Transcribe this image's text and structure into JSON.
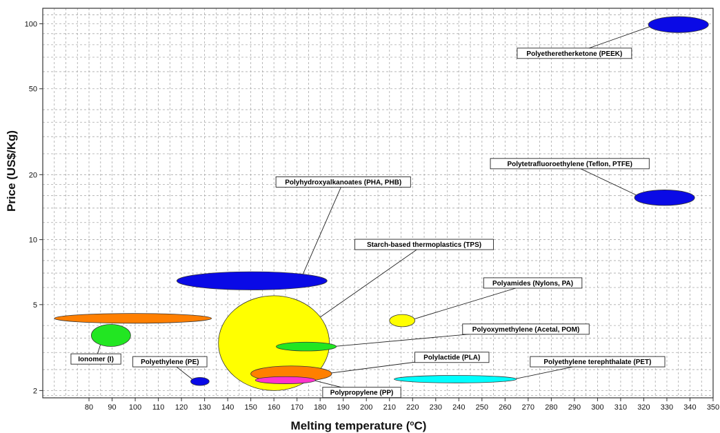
{
  "chart_data": {
    "type": "scatter",
    "subtype": "bubble-ellipse",
    "xlabel": "Melting temperature (",
    "xlabel_sup": "o",
    "xlabel_suffix": "C)",
    "ylabel": "Price (US$/Kg)",
    "xlim": [
      60,
      350
    ],
    "ylim": [
      1.85,
      118
    ],
    "y_scale": "log",
    "grid": true,
    "x_ticks": [
      80,
      90,
      100,
      110,
      120,
      130,
      140,
      150,
      160,
      170,
      180,
      190,
      200,
      210,
      220,
      230,
      240,
      250,
      260,
      270,
      280,
      290,
      300,
      310,
      320,
      330,
      340,
      350
    ],
    "y_ticks": [
      2,
      5,
      10,
      20,
      50,
      100
    ],
    "series": [
      {
        "label": "Polyetheretherketone (PEEK)",
        "x_min": 322,
        "x_max": 348,
        "y_min": 91,
        "y_max": 108,
        "color": "#0a0ae6",
        "label_x": 290,
        "label_y": 73
      },
      {
        "label": "Polytetrafluoroethylene (Teflon, PTFE)",
        "x_min": 316,
        "x_max": 342,
        "y_min": 14.4,
        "y_max": 17.0,
        "color": "#0a0ae6",
        "label_x": 288,
        "label_y": 22.5
      },
      {
        "label": "Polyhydroxyalkanoates (PHA, PHB)",
        "x_min": 118,
        "x_max": 183,
        "y_min": 5.85,
        "y_max": 7.1,
        "color": "#0a0ae6",
        "label_x": 190,
        "label_y": 18.5
      },
      {
        "label": "Starch-based thermoplastics (TPS)",
        "x_min": 136,
        "x_max": 184,
        "y_min": 2.0,
        "y_max": 5.5,
        "color": "#ffff00",
        "label_x": 225,
        "label_y": 9.5
      },
      {
        "label": "Polyamides (Nylons, PA)",
        "x_min": 210,
        "x_max": 221,
        "y_min": 3.95,
        "y_max": 4.5,
        "color": "#ffff00",
        "label_x": 272,
        "label_y": 6.3
      },
      {
        "label": "Polyoxymethylene (Acetal, POM)",
        "x_min": 161,
        "x_max": 187,
        "y_min": 3.05,
        "y_max": 3.35,
        "color": "#22e622",
        "label_x": 269,
        "label_y": 3.85
      },
      {
        "label": "Polylactide (PLA)",
        "x_min": 150,
        "x_max": 185,
        "y_min": 2.2,
        "y_max": 2.6,
        "color": "#ff7f00",
        "label_x": 237,
        "label_y": 2.85
      },
      {
        "label": "Polypropylene (PP)",
        "x_min": 152,
        "x_max": 178,
        "y_min": 2.15,
        "y_max": 2.32,
        "color": "#ff33cc",
        "label_x": 198,
        "label_y": 1.96
      },
      {
        "label": "Polyethylene terephthalate (PET)",
        "x_min": 212,
        "x_max": 265,
        "y_min": 2.17,
        "y_max": 2.35,
        "color": "#00ffff",
        "label_x": 300,
        "label_y": 2.72
      },
      {
        "label": "Polyethylene (PE)",
        "x_min": 124,
        "x_max": 132,
        "y_min": 2.11,
        "y_max": 2.3,
        "color": "#0a0ae6",
        "label_x": 115,
        "label_y": 2.72
      },
      {
        "label": "Ionomer (I)",
        "x_min": 81,
        "x_max": 98,
        "y_min": 3.2,
        "y_max": 4.05,
        "color": "#22e622",
        "label_x": 83,
        "label_y": 2.8
      },
      {
        "label": "",
        "x_min": 65,
        "x_max": 133,
        "y_min": 4.1,
        "y_max": 4.55,
        "color": "#ff7f00"
      }
    ]
  }
}
